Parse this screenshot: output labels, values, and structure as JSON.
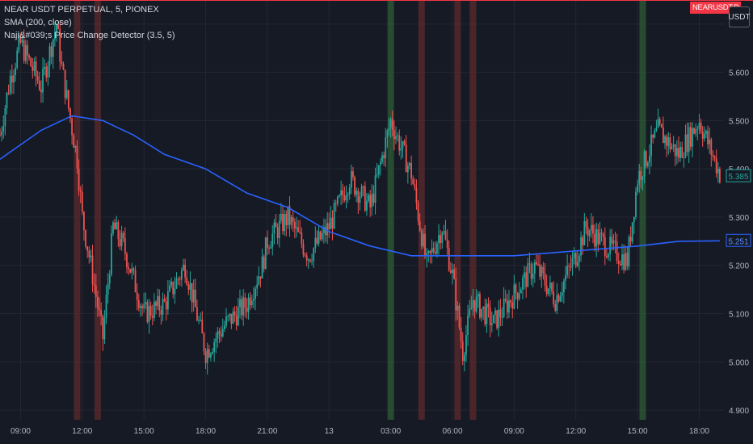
{
  "legend": {
    "symbol": "NEAR USDT PERPETUAL, 5, PIONEX",
    "sma": "SMA (200, close)",
    "indicator": "Naji&#039;s Price Change Detector (3.5, 5)"
  },
  "badges": {
    "symbol_tag": "NEARUSDT.P",
    "unit": "USDT"
  },
  "colors": {
    "background": "#161a25",
    "grid": "#242733",
    "up": "#26a69a",
    "down": "#ef5350",
    "sma": "#2962ff",
    "green_band": "#2e5c34",
    "red_band": "#5c2a2c",
    "axis_text": "#b2b5be"
  },
  "chart_data": {
    "type": "candlestick",
    "ylim": [
      4.88,
      5.75
    ],
    "y_ticks": [
      4.9,
      5.0,
      5.1,
      5.2,
      5.3,
      5.4,
      5.5,
      5.6,
      5.7
    ],
    "x_ticks": [
      "09:00",
      "12:00",
      "15:00",
      "18:00",
      "21:00",
      "13",
      "03:00",
      "06:00",
      "09:00",
      "12:00",
      "15:00",
      "18:00"
    ],
    "last_price": "5.385",
    "sma_value": "5.251",
    "price_path": [
      [
        "08:00",
        5.47
      ],
      [
        "08:30",
        5.59
      ],
      [
        "09:00",
        5.66
      ],
      [
        "10:00",
        5.57
      ],
      [
        "10:45",
        5.7
      ],
      [
        "11:00",
        5.61
      ],
      [
        "11:45",
        5.42
      ],
      [
        "12:00",
        5.3
      ],
      [
        "12:30",
        5.18
      ],
      [
        "13:00",
        5.05
      ],
      [
        "13:30",
        5.28
      ],
      [
        "14:00",
        5.24
      ],
      [
        "15:00",
        5.1
      ],
      [
        "16:00",
        5.12
      ],
      [
        "17:00",
        5.2
      ],
      [
        "18:00",
        5.02
      ],
      [
        "19:00",
        5.08
      ],
      [
        "20:00",
        5.12
      ],
      [
        "20:45",
        5.2
      ],
      [
        "21:00",
        5.25
      ],
      [
        "22:00",
        5.3
      ],
      [
        "23:00",
        5.22
      ],
      [
        "00:00",
        5.28
      ],
      [
        "01:00",
        5.38
      ],
      [
        "02:00",
        5.32
      ],
      [
        "03:00",
        5.5
      ],
      [
        "04:00",
        5.39
      ],
      [
        "04:45",
        5.2
      ],
      [
        "05:30",
        5.28
      ],
      [
        "06:00",
        5.18
      ],
      [
        "06:30",
        5.02
      ],
      [
        "07:00",
        5.13
      ],
      [
        "08:00",
        5.08
      ],
      [
        "09:00",
        5.14
      ],
      [
        "10:00",
        5.2
      ],
      [
        "11:00",
        5.13
      ],
      [
        "12:00",
        5.22
      ],
      [
        "12:30",
        5.28
      ],
      [
        "13:30",
        5.24
      ],
      [
        "14:30",
        5.21
      ],
      [
        "15:00",
        5.38
      ],
      [
        "16:00",
        5.48
      ],
      [
        "17:00",
        5.43
      ],
      [
        "18:00",
        5.5
      ],
      [
        "19:00",
        5.39
      ]
    ],
    "sma_path": [
      [
        "08:00",
        5.42
      ],
      [
        "10:00",
        5.48
      ],
      [
        "11:30",
        5.51
      ],
      [
        "13:00",
        5.5
      ],
      [
        "14:30",
        5.47
      ],
      [
        "16:00",
        5.43
      ],
      [
        "18:00",
        5.4
      ],
      [
        "20:00",
        5.35
      ],
      [
        "22:00",
        5.32
      ],
      [
        "00:00",
        5.27
      ],
      [
        "02:00",
        5.24
      ],
      [
        "04:00",
        5.22
      ],
      [
        "06:00",
        5.22
      ],
      [
        "09:00",
        5.22
      ],
      [
        "12:00",
        5.23
      ],
      [
        "15:00",
        5.24
      ],
      [
        "17:00",
        5.25
      ],
      [
        "19:00",
        5.251
      ]
    ],
    "signal_bands": [
      {
        "time": "11:45",
        "signal": "down"
      },
      {
        "time": "12:45",
        "signal": "down"
      },
      {
        "time": "03:00",
        "signal": "up"
      },
      {
        "time": "04:30",
        "signal": "down"
      },
      {
        "time": "06:15",
        "signal": "down"
      },
      {
        "time": "07:00",
        "signal": "down"
      },
      {
        "time": "15:15",
        "signal": "up"
      }
    ]
  }
}
